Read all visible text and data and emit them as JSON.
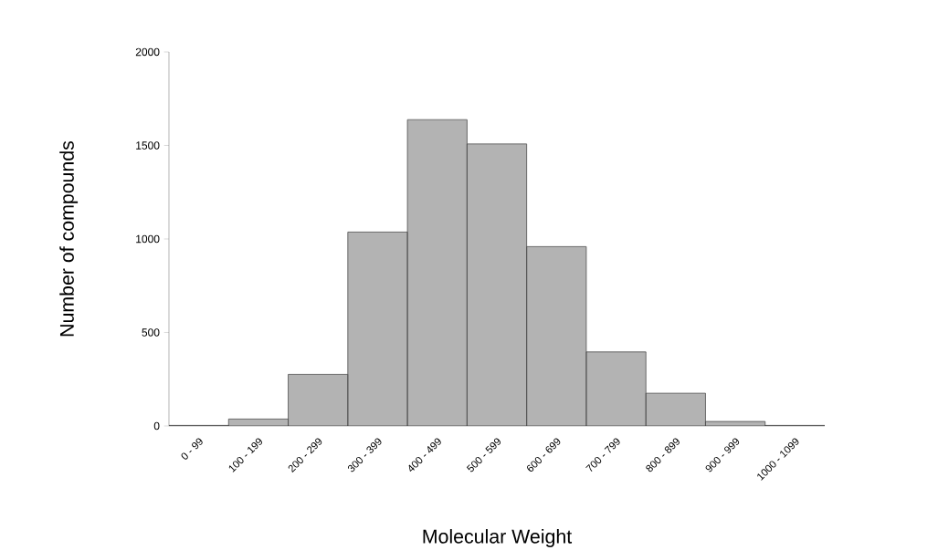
{
  "chart_data": {
    "type": "bar",
    "xlabel": "Molecular Weight",
    "ylabel": "Number of compounds",
    "categories": [
      "0 - 99",
      "100 - 199",
      "200 - 299",
      "300 - 399",
      "400 - 499",
      "500 - 599",
      "600 - 699",
      "700 - 799",
      "800 - 899",
      "900 - 999",
      "1000 - 1099"
    ],
    "values": [
      3,
      37,
      276,
      1037,
      1638,
      1508,
      959,
      396,
      175,
      24,
      3
    ],
    "color": "#b3b3b3",
    "ylim": [
      0,
      2000
    ],
    "yticks": [
      0,
      500,
      1000,
      1500,
      2000
    ],
    "grid": false
  }
}
